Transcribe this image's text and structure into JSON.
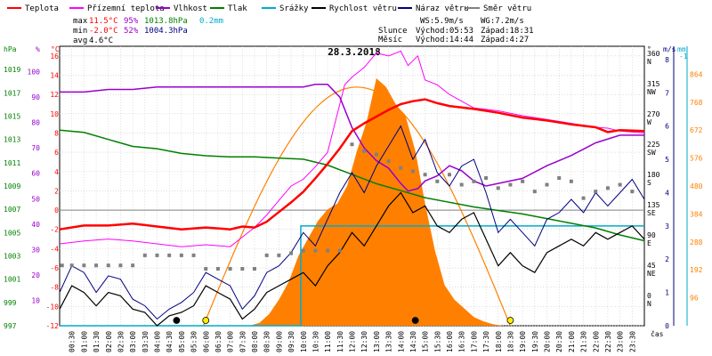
{
  "chart_data": {
    "type": "line",
    "title": "28.3.2018",
    "legend": [
      {
        "label": "Teplota",
        "color": "#ff0000"
      },
      {
        "label": "Přízemní teplota",
        "color": "#ff00ff"
      },
      {
        "label": "Vlhkost",
        "color": "#9900cc"
      },
      {
        "label": "Tlak",
        "color": "#008000"
      },
      {
        "label": "Srážky",
        "color": "#00aacc"
      },
      {
        "label": "Rychlost větru",
        "color": "#000000"
      },
      {
        "label": "Náraz větru",
        "color": "#000080"
      },
      {
        "label": "Směr větru",
        "color": "#808080"
      }
    ],
    "stats": {
      "max": {
        "label": "max",
        "temp": "11.5°C",
        "hum": "95%",
        "press": "1013.8hPa",
        "rain": "0.2mm"
      },
      "min": {
        "label": "min",
        "temp": "-2.0°C",
        "hum": "52%",
        "press": "1004.3hPa"
      },
      "avg": {
        "label": "avg",
        "temp": "4.6°C"
      }
    },
    "info": {
      "ws": "WS:5.9m/s",
      "wg": "WG:7.2m/s",
      "sun_label": "Slunce",
      "sunrise": "Východ:05:53",
      "sunset": "Západ:18:31",
      "moon_label": "Měsíc",
      "moonrise": "Východ:14:44",
      "moonset": "Západ:4:27"
    },
    "axes": {
      "hpa": {
        "label": "hPa",
        "ticks": [
          "997",
          "999",
          "1001",
          "1003",
          "1005",
          "1007",
          "1009",
          "1011",
          "1013",
          "1015",
          "1017",
          "1019"
        ],
        "range": [
          997,
          1021
        ]
      },
      "pct": {
        "label": "%",
        "ticks": [
          "10",
          "20",
          "30",
          "40",
          "50",
          "60",
          "70",
          "80",
          "90",
          "100"
        ],
        "range": [
          0,
          110
        ]
      },
      "degc": {
        "label": "°C",
        "ticks": [
          "-12",
          "-10",
          "-8",
          "-6",
          "-4",
          "-2",
          "0",
          "2",
          "4",
          "6",
          "8",
          "10",
          "12",
          "14",
          "16"
        ],
        "range": [
          -12,
          17
        ]
      },
      "dir": {
        "label": "°",
        "ticks": [
          {
            "deg": "0",
            "card": "N"
          },
          {
            "deg": "45",
            "card": "NE"
          },
          {
            "deg": "90",
            "card": "E"
          },
          {
            "deg": "135",
            "card": "SE"
          },
          {
            "deg": "180",
            "card": "S"
          },
          {
            "deg": "225",
            "card": "SW"
          },
          {
            "deg": "270",
            "card": "W"
          },
          {
            "deg": "315",
            "card": "NW"
          },
          {
            "deg": "360",
            "card": "N"
          }
        ]
      },
      "ms": {
        "label": "m/s",
        "ticks": [
          "0",
          "1",
          "2",
          "3",
          "4",
          "5",
          "6",
          "7",
          "8"
        ],
        "range": [
          0,
          8.4
        ]
      },
      "mm": {
        "label": "mm",
        "ticks": [
          "-1"
        ]
      },
      "wm2": {
        "ticks": [
          "96",
          "192",
          "288",
          "384",
          "480",
          "576",
          "672",
          "768",
          "864"
        ],
        "range": [
          0,
          960
        ]
      },
      "x": {
        "label": "čas",
        "ticks": [
          "00:30",
          "01:00",
          "01:30",
          "02:00",
          "02:30",
          "03:00",
          "03:30",
          "04:00",
          "04:30",
          "05:00",
          "05:30",
          "06:00",
          "06:30",
          "07:00",
          "07:30",
          "08:00",
          "08:30",
          "09:00",
          "09:30",
          "10:00",
          "10:30",
          "11:00",
          "11:30",
          "12:00",
          "12:30",
          "13:00",
          "13:30",
          "14:00",
          "14:30",
          "15:00",
          "15:30",
          "16:00",
          "16:30",
          "17:00",
          "17:30",
          "18:00",
          "18:30",
          "19:00",
          "19:30",
          "20:00",
          "20:30",
          "21:00",
          "21:30",
          "22:00",
          "22:30",
          "23:00",
          "23:30"
        ],
        "range": [
          0,
          24
        ]
      }
    },
    "series": [
      {
        "name": "Teplota",
        "axis": "degc",
        "color": "#ff0000",
        "x": [
          0,
          1,
          2,
          3,
          4,
          5,
          6,
          7,
          7.5,
          8,
          8.5,
          9,
          9.5,
          10,
          10.5,
          11,
          11.5,
          12,
          12.5,
          13,
          13.5,
          14,
          14.5,
          15,
          15.5,
          16,
          17,
          18,
          19,
          20,
          21,
          22,
          22.5,
          23,
          24
        ],
        "y": [
          -2.0,
          -1.6,
          -1.6,
          -1.4,
          -1.7,
          -2.0,
          -1.8,
          -2.0,
          -1.7,
          -1.8,
          -1.2,
          -0.2,
          0.8,
          1.9,
          3.3,
          4.8,
          6.4,
          8.2,
          9.0,
          9.7,
          10.4,
          11.0,
          11.3,
          11.5,
          11.1,
          10.8,
          10.5,
          10.1,
          9.6,
          9.3,
          8.9,
          8.6,
          8.1,
          8.3,
          8.2
        ]
      },
      {
        "name": "Přízemní teplota",
        "axis": "degc",
        "color": "#ff00ff",
        "x": [
          0,
          1,
          2,
          3,
          4,
          5,
          6,
          7,
          7.5,
          8,
          8.5,
          9,
          9.5,
          10,
          10.5,
          11,
          11.3,
          11.7,
          12,
          12.5,
          13,
          13.5,
          14,
          14.3,
          14.7,
          15,
          15.5,
          16,
          16.5,
          17,
          18,
          19,
          20,
          21,
          22,
          22.5,
          23,
          24
        ],
        "y": [
          -3.5,
          -3.2,
          -3.0,
          -3.2,
          -3.5,
          -3.8,
          -3.6,
          -3.8,
          -2.8,
          -1.8,
          -0.5,
          1.0,
          2.5,
          3.2,
          4.5,
          6.0,
          9.0,
          13.0,
          13.8,
          14.8,
          16.3,
          16.0,
          16.5,
          15.0,
          16.0,
          13.5,
          13.0,
          12.0,
          11.3,
          10.6,
          10.3,
          9.8,
          9.4,
          9.0,
          8.6,
          8.5,
          8.2,
          8.0
        ]
      },
      {
        "name": "Vlhkost",
        "axis": "pct",
        "color": "#9900cc",
        "x": [
          0,
          1,
          2,
          3,
          4,
          5,
          6,
          7,
          8,
          9,
          10,
          10.5,
          11,
          11.5,
          12,
          12.5,
          13,
          13.5,
          14,
          14.3,
          14.7,
          15,
          15.5,
          16,
          16.5,
          17,
          17.5,
          18,
          19,
          20,
          21,
          22,
          23,
          24
        ],
        "y": [
          92,
          92,
          93,
          93,
          94,
          94,
          94,
          94,
          94,
          94,
          94,
          95,
          95,
          90,
          78,
          70,
          65,
          62,
          56,
          53,
          54,
          57,
          59,
          63,
          61,
          57,
          55,
          56,
          58,
          63,
          67,
          72,
          75,
          75
        ]
      },
      {
        "name": "Tlak",
        "axis": "hpa",
        "color": "#008000",
        "x": [
          0,
          1,
          2,
          3,
          4,
          5,
          6,
          7,
          8,
          9,
          10,
          11,
          12,
          13,
          14,
          15,
          16,
          17,
          18,
          19,
          20,
          21,
          22,
          23,
          24
        ],
        "y": [
          1013.8,
          1013.6,
          1013.0,
          1012.4,
          1012.2,
          1011.8,
          1011.6,
          1011.5,
          1011.5,
          1011.4,
          1011.3,
          1010.8,
          1010.0,
          1009.2,
          1008.6,
          1008.0,
          1007.6,
          1007.2,
          1006.9,
          1006.6,
          1006.2,
          1005.8,
          1005.4,
          1004.8,
          1004.3
        ]
      },
      {
        "name": "Srážky",
        "axis": "ms",
        "color": "#00aacc",
        "x": [
          0,
          9.9,
          9.9,
          24
        ],
        "y": [
          0,
          0,
          3.0,
          3.0
        ]
      },
      {
        "name": "Rychlost větru",
        "axis": "ms",
        "color": "#000000",
        "x": [
          0,
          0.5,
          1,
          1.5,
          2,
          2.5,
          3,
          3.5,
          4,
          4.5,
          5,
          5.5,
          6,
          6.5,
          7,
          7.5,
          8,
          8.5,
          9,
          9.5,
          10,
          10.5,
          11,
          11.5,
          12,
          12.5,
          13,
          13.5,
          14,
          14.5,
          15,
          15.5,
          16,
          16.5,
          17,
          17.5,
          18,
          18.5,
          19,
          19.5,
          20,
          20.5,
          21,
          21.5,
          22,
          22.5,
          23,
          23.5,
          24
        ],
        "y": [
          0.5,
          1.2,
          1.0,
          0.6,
          1.0,
          0.9,
          0.5,
          0.4,
          0,
          0.3,
          0.4,
          0.6,
          1.2,
          1.0,
          0.8,
          0.2,
          0.5,
          1.0,
          1.2,
          1.4,
          1.6,
          1.2,
          1.8,
          2.2,
          2.8,
          2.4,
          3.0,
          3.6,
          4.0,
          3.4,
          3.6,
          3.0,
          2.8,
          3.2,
          3.4,
          2.6,
          1.8,
          2.2,
          1.8,
          1.6,
          2.2,
          2.4,
          2.6,
          2.4,
          2.8,
          2.6,
          2.8,
          3.0,
          2.6
        ]
      },
      {
        "name": "Náraz větru",
        "axis": "ms",
        "color": "#000080",
        "x": [
          0,
          0.5,
          1,
          1.5,
          2,
          2.5,
          3,
          3.5,
          4,
          4.5,
          5,
          5.5,
          6,
          6.5,
          7,
          7.5,
          8,
          8.5,
          9,
          9.5,
          10,
          10.5,
          11,
          11.5,
          12,
          12.5,
          13,
          13.5,
          14,
          14.5,
          15,
          15.5,
          16,
          16.5,
          17,
          17.5,
          18,
          18.5,
          19,
          19.5,
          20,
          20.5,
          21,
          21.5,
          22,
          22.5,
          23,
          23.5,
          24
        ],
        "y": [
          1.0,
          1.8,
          1.6,
          1.0,
          1.5,
          1.4,
          0.8,
          0.6,
          0.2,
          0.5,
          0.7,
          1.0,
          1.6,
          1.4,
          1.2,
          0.5,
          0.9,
          1.6,
          1.8,
          2.2,
          2.8,
          2.4,
          3.2,
          4.0,
          4.6,
          4.0,
          4.8,
          5.4,
          6.0,
          5.0,
          5.6,
          4.6,
          4.2,
          4.8,
          5.0,
          4.0,
          2.8,
          3.2,
          2.8,
          2.4,
          3.2,
          3.4,
          3.8,
          3.4,
          4.0,
          3.6,
          4.0,
          4.4,
          3.8
        ]
      },
      {
        "name": "Směr větru",
        "axis": "dir",
        "color": "#808080",
        "x": [
          0.1,
          0.5,
          1,
          1.5,
          2,
          2.5,
          3,
          3.5,
          4,
          4.5,
          5,
          5.5,
          6,
          6.5,
          7,
          7.5,
          8,
          8.5,
          9,
          9.5,
          10,
          10.5,
          11,
          11.5,
          12,
          12.5,
          13,
          13.5,
          14,
          14.5,
          15,
          15.5,
          16,
          16.5,
          17,
          17.5,
          18,
          18.5,
          19,
          19.5,
          20,
          20.5,
          21,
          21.5,
          22,
          22.5,
          23,
          23.5
        ],
        "y": [
          50,
          50,
          50,
          50,
          50,
          50,
          50,
          65,
          65,
          65,
          65,
          65,
          45,
          45,
          45,
          45,
          45,
          65,
          65,
          68,
          72,
          72,
          72,
          72,
          230,
          220,
          215,
          205,
          195,
          190,
          185,
          175,
          185,
          170,
          175,
          180,
          165,
          170,
          175,
          160,
          170,
          180,
          175,
          150,
          160,
          165,
          170,
          160
        ]
      },
      {
        "name": "Solar",
        "axis": "wm2",
        "color": "#ff8000",
        "x": [
          7.8,
          8.2,
          8.6,
          9,
          9.4,
          9.8,
          10.2,
          10.6,
          11,
          11.4,
          11.8,
          12.2,
          12.6,
          13,
          13.4,
          13.8,
          14.2,
          14.6,
          15,
          15.4,
          15.8,
          16.2,
          16.6,
          17,
          17.4,
          17.8,
          18.2
        ],
        "y": [
          0,
          10,
          40,
          90,
          150,
          240,
          300,
          360,
          400,
          420,
          480,
          600,
          700,
          850,
          820,
          760,
          720,
          600,
          420,
          260,
          140,
          90,
          60,
          30,
          15,
          5,
          0
        ]
      }
    ],
    "solar_theory": {
      "axis": "wm2",
      "x": [
        5.9,
        18.5
      ],
      "peak": 820,
      "peak_x": 12.2
    },
    "markers": [
      {
        "x": 4.8,
        "kind": "moon",
        "color": "#000000"
      },
      {
        "x": 6.0,
        "kind": "sun",
        "color": "#ffee00"
      },
      {
        "x": 14.6,
        "kind": "moon",
        "color": "#000000"
      },
      {
        "x": 18.5,
        "kind": "sun",
        "color": "#ffee00"
      }
    ]
  }
}
